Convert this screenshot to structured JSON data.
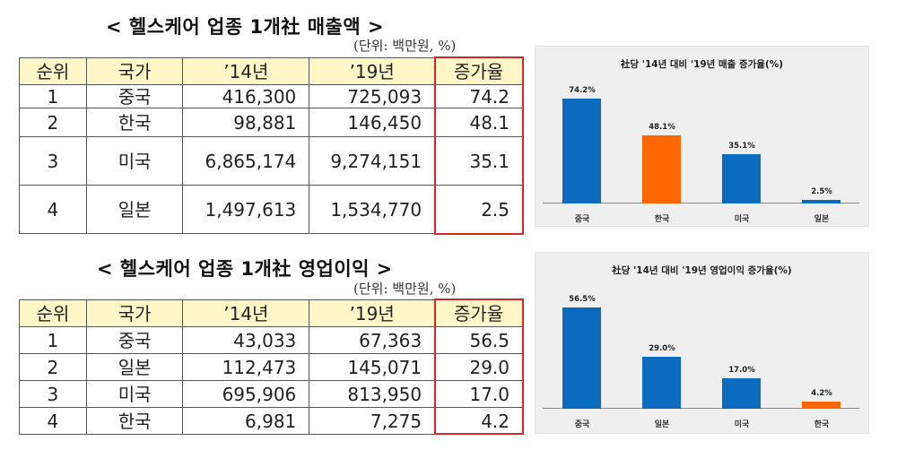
{
  "table1": {
    "title": "< 헬스케어 업종 1개社 매출액 >",
    "unit": "(단위: 백만원, %)",
    "headers": [
      "순위",
      "국가",
      "’14년",
      "’19년",
      "증가율"
    ],
    "rows": [
      {
        "rank": "1",
        "country": "중국",
        "y14": "416,300",
        "y19": "725,093",
        "growth": "74.2"
      },
      {
        "rank": "2",
        "country": "한국",
        "y14": "98,881",
        "y19": "146,450",
        "growth": "48.1"
      },
      {
        "rank": "3",
        "country": "미국",
        "y14": "6,865,174",
        "y19": "9,274,151",
        "growth": "35.1"
      },
      {
        "rank": "4",
        "country": "일본",
        "y14": "1,497,613",
        "y19": "1,534,770",
        "growth": "2.5"
      }
    ]
  },
  "table2": {
    "title": "< 헬스케어 업종 1개社 영업이익 >",
    "unit": "(단위: 백만원, %)",
    "headers": [
      "순위",
      "국가",
      "’14년",
      "’19년",
      "증가율"
    ],
    "rows": [
      {
        "rank": "1",
        "country": "중국",
        "y14": "43,033",
        "y19": "67,363",
        "growth": "56.5"
      },
      {
        "rank": "2",
        "country": "일본",
        "y14": "112,473",
        "y19": "145,071",
        "growth": "29.0"
      },
      {
        "rank": "3",
        "country": "미국",
        "y14": "695,906",
        "y19": "813,950",
        "growth": "17.0"
      },
      {
        "rank": "4",
        "country": "한국",
        "y14": "6,981",
        "y19": "7,275",
        "growth": "4.2"
      }
    ]
  },
  "colors": {
    "bar_default": "#0B6BBF",
    "bar_highlight": "#FF6600",
    "chart_bg": "#EFEFEF",
    "header_bg": "#FFF7C8",
    "highlight_border": "#D42727"
  },
  "chart_data": [
    {
      "type": "bar",
      "title": "社당 '14년 대비 '19년 매출 증가율(%)",
      "categories": [
        "중국",
        "한국",
        "미국",
        "일본"
      ],
      "values": [
        74.2,
        48.1,
        35.1,
        2.5
      ],
      "labels": [
        "74.2%",
        "48.1%",
        "35.1%",
        "2.5%"
      ],
      "highlight": "한국",
      "xlabel": "",
      "ylabel": "",
      "ylim": [
        0,
        80
      ],
      "grid": false,
      "legend": false
    },
    {
      "type": "bar",
      "title": "社당 '14년 대비 '19년 영업이익 증가율(%)",
      "categories": [
        "중국",
        "일본",
        "미국",
        "한국"
      ],
      "values": [
        56.5,
        29.0,
        17.0,
        4.2
      ],
      "labels": [
        "56.5%",
        "29.0%",
        "17.0%",
        "4.2%"
      ],
      "highlight": "한국",
      "xlabel": "",
      "ylabel": "",
      "ylim": [
        0,
        65
      ],
      "grid": false,
      "legend": false
    }
  ]
}
